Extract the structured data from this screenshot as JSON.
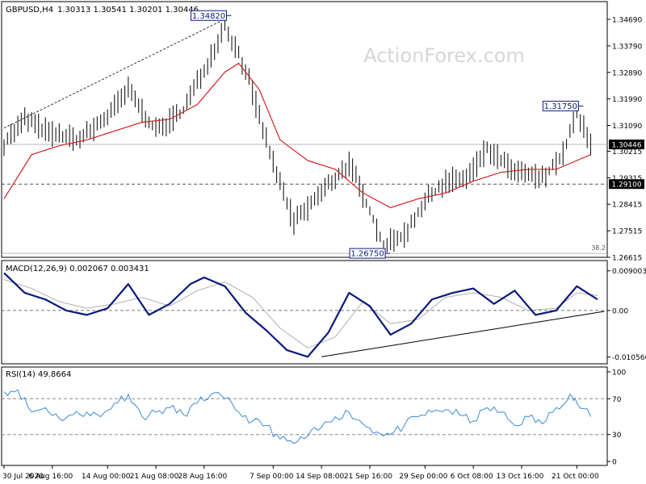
{
  "header": {
    "symbol_label": "GBPUSD,H4",
    "ohlc_values": "1.30313 1.30541 1.30201 1.30446",
    "watermark": "ActionForex.com"
  },
  "colors": {
    "candle": "#1a1a1a",
    "ma": "#d42020",
    "macd": "#0a1a7a",
    "signal": "#b0b0b0",
    "rsi": "#3a8ad8",
    "frame": "#000000",
    "grid": "#b8b8b8",
    "watermark": "#d6d6d6"
  },
  "chart_data": [
    {
      "type": "line",
      "panel": "price",
      "ylim": [
        1.26615,
        1.3469
      ],
      "yticks": [
        "1.34690",
        "1.33790",
        "1.32890",
        "1.31990",
        "1.31090",
        "1.30215",
        "1.29315",
        "1.28415",
        "1.27515",
        "1.26615"
      ],
      "last_price_label": "1.30446",
      "horizontal_lines": [
        {
          "value": 1.30446,
          "style": "solid"
        },
        {
          "value": 1.291,
          "style": "dashed",
          "label": "1.29100"
        },
        {
          "value": 1.2675,
          "style": "solid",
          "fib_label": "38.2"
        }
      ],
      "annotations": [
        {
          "label": "1.34820",
          "value": 1.3482,
          "date": "2020-08-31"
        },
        {
          "label": "1.31750",
          "value": 1.3175,
          "date": "2020-10-21"
        },
        {
          "label": "1.26750",
          "value": 1.2675,
          "date": "2020-09-23"
        }
      ],
      "trendline": {
        "from": {
          "date": "2020-07-30",
          "value": 1.31
        },
        "to": {
          "date": "2020-08-31",
          "value": 1.347
        },
        "style": "dashed"
      },
      "series": [
        {
          "kind": "price_bars",
          "x": [
            "2020-07-30",
            "2020-08-02",
            "2020-08-06",
            "2020-08-10",
            "2020-08-14",
            "2020-08-17",
            "2020-08-21",
            "2020-08-25",
            "2020-08-28",
            "2020-08-31",
            "2020-09-03",
            "2020-09-07",
            "2020-09-10",
            "2020-09-14",
            "2020-09-18",
            "2020-09-21",
            "2020-09-23",
            "2020-09-26",
            "2020-09-29",
            "2020-10-02",
            "2020-10-05",
            "2020-10-08",
            "2020-10-12",
            "2020-10-16",
            "2020-10-19",
            "2020-10-21",
            "2020-10-23"
          ],
          "y": [
            1.305,
            1.313,
            1.308,
            1.306,
            1.314,
            1.323,
            1.309,
            1.316,
            1.33,
            1.345,
            1.33,
            1.298,
            1.278,
            1.288,
            1.298,
            1.282,
            1.27,
            1.274,
            1.285,
            1.292,
            1.293,
            1.303,
            1.295,
            1.293,
            1.301,
            1.315,
            1.3045
          ]
        },
        {
          "name": "MA",
          "x": [
            "2020-07-30",
            "2020-08-03",
            "2020-08-07",
            "2020-08-11",
            "2020-08-15",
            "2020-08-19",
            "2020-08-23",
            "2020-08-27",
            "2020-08-31",
            "2020-09-02",
            "2020-09-05",
            "2020-09-08",
            "2020-09-12",
            "2020-09-16",
            "2020-09-20",
            "2020-09-24",
            "2020-09-28",
            "2020-10-02",
            "2020-10-06",
            "2020-10-10",
            "2020-10-14",
            "2020-10-18",
            "2020-10-21",
            "2020-10-23"
          ],
          "y": [
            1.286,
            1.301,
            1.304,
            1.306,
            1.309,
            1.312,
            1.313,
            1.318,
            1.329,
            1.332,
            1.323,
            1.306,
            1.299,
            1.296,
            1.288,
            1.283,
            1.286,
            1.288,
            1.292,
            1.295,
            1.296,
            1.296,
            1.299,
            1.301
          ]
        }
      ],
      "x_tick_labels": [
        "30 Jul 2020",
        "6 Aug 16:00",
        "14 Aug 00:00",
        "21 Aug 08:00",
        "28 Aug 16:00",
        "7 Sep 00:00",
        "14 Sep 08:00",
        "21 Sep 16:00",
        "29 Sep 00:00",
        "6 Oct 08:00",
        "13 Oct 16:00",
        "21 Oct 00:00"
      ],
      "x_tick_dates": [
        "2020-07-30",
        "2020-08-06",
        "2020-08-14",
        "2020-08-21",
        "2020-08-28",
        "2020-09-07",
        "2020-09-14",
        "2020-09-21",
        "2020-09-29",
        "2020-10-06",
        "2020-10-13",
        "2020-10-21"
      ]
    },
    {
      "type": "line",
      "panel": "macd",
      "title": "MACD(12,26,9) 0.002067 0.003431",
      "ylim": [
        -0.011,
        0.0095
      ],
      "yticks": [
        0.009003,
        0.0,
        -0.010566
      ],
      "ytick_labels": [
        "0.009003",
        "0.00",
        "-0.010566"
      ],
      "zero_line": {
        "value": 0.0,
        "style": "dashed"
      },
      "trendline": {
        "from": {
          "date": "2020-09-14",
          "value": -0.0105
        },
        "to": {
          "date": "2020-10-25",
          "value": -0.0002
        }
      },
      "series": [
        {
          "name": "MACD",
          "x": [
            "2020-07-30",
            "2020-08-02",
            "2020-08-05",
            "2020-08-08",
            "2020-08-11",
            "2020-08-14",
            "2020-08-17",
            "2020-08-20",
            "2020-08-23",
            "2020-08-26",
            "2020-08-28",
            "2020-08-31",
            "2020-09-03",
            "2020-09-06",
            "2020-09-09",
            "2020-09-12",
            "2020-09-15",
            "2020-09-18",
            "2020-09-21",
            "2020-09-24",
            "2020-09-27",
            "2020-09-30",
            "2020-10-03",
            "2020-10-06",
            "2020-10-09",
            "2020-10-12",
            "2020-10-15",
            "2020-10-18",
            "2020-10-21",
            "2020-10-24"
          ],
          "y": [
            0.0085,
            0.004,
            0.0025,
            0.0,
            -0.001,
            0.0005,
            0.006,
            -0.001,
            0.0015,
            0.006,
            0.0075,
            0.0055,
            -0.0005,
            -0.0045,
            -0.009,
            -0.0105,
            -0.005,
            0.004,
            0.001,
            -0.0055,
            -0.003,
            0.0025,
            0.004,
            0.005,
            0.0015,
            0.0045,
            -0.001,
            0.0,
            0.0055,
            0.0025
          ]
        },
        {
          "name": "Signal",
          "x": [
            "2020-07-30",
            "2020-08-03",
            "2020-08-07",
            "2020-08-11",
            "2020-08-15",
            "2020-08-19",
            "2020-08-23",
            "2020-08-27",
            "2020-08-31",
            "2020-09-04",
            "2020-09-08",
            "2020-09-12",
            "2020-09-16",
            "2020-09-20",
            "2020-09-24",
            "2020-09-28",
            "2020-10-02",
            "2020-10-06",
            "2020-10-10",
            "2020-10-14",
            "2020-10-18",
            "2020-10-21",
            "2020-10-24"
          ],
          "y": [
            0.007,
            0.005,
            0.002,
            0.0005,
            0.0015,
            0.003,
            0.001,
            0.0045,
            0.0065,
            0.003,
            -0.004,
            -0.0085,
            -0.006,
            0.002,
            -0.003,
            -0.002,
            0.003,
            0.004,
            0.003,
            0.0,
            0.0005,
            0.004,
            0.0034
          ]
        }
      ]
    },
    {
      "type": "line",
      "panel": "rsi",
      "title": "RSI(14) 49.8664",
      "ylim": [
        0,
        100
      ],
      "yticks": [
        100,
        70,
        30,
        0
      ],
      "ytick_labels": [
        "100",
        "70",
        "30",
        "0"
      ],
      "levels": [
        70,
        30
      ],
      "series": [
        {
          "name": "RSI",
          "x": [
            "2020-07-30",
            "2020-08-01",
            "2020-08-03",
            "2020-08-05",
            "2020-08-07",
            "2020-08-09",
            "2020-08-11",
            "2020-08-13",
            "2020-08-15",
            "2020-08-17",
            "2020-08-19",
            "2020-08-21",
            "2020-08-23",
            "2020-08-25",
            "2020-08-27",
            "2020-08-29",
            "2020-08-31",
            "2020-09-02",
            "2020-09-04",
            "2020-09-06",
            "2020-09-08",
            "2020-09-10",
            "2020-09-12",
            "2020-09-14",
            "2020-09-16",
            "2020-09-18",
            "2020-09-20",
            "2020-09-22",
            "2020-09-24",
            "2020-09-26",
            "2020-09-28",
            "2020-09-30",
            "2020-10-02",
            "2020-10-04",
            "2020-10-06",
            "2020-10-08",
            "2020-10-10",
            "2020-10-12",
            "2020-10-14",
            "2020-10-16",
            "2020-10-18",
            "2020-10-20",
            "2020-10-21",
            "2020-10-23"
          ],
          "y": [
            78,
            80,
            55,
            60,
            48,
            52,
            55,
            50,
            65,
            75,
            50,
            55,
            60,
            52,
            65,
            75,
            70,
            55,
            45,
            40,
            25,
            20,
            28,
            38,
            50,
            55,
            42,
            33,
            30,
            40,
            50,
            55,
            58,
            52,
            45,
            60,
            55,
            40,
            50,
            42,
            60,
            75,
            65,
            50
          ]
        }
      ],
      "x_tick_labels": [
        "30 Jul 2020",
        "6 Aug 16:00",
        "14 Aug 00:00",
        "21 Aug 08:00",
        "28 Aug 16:00",
        "7 Sep 00:00",
        "14 Sep 08:00",
        "21 Sep 16:00",
        "29 Sep 00:00",
        "6 Oct 08:00",
        "13 Oct 16:00",
        "21 Oct 00:00"
      ]
    }
  ]
}
